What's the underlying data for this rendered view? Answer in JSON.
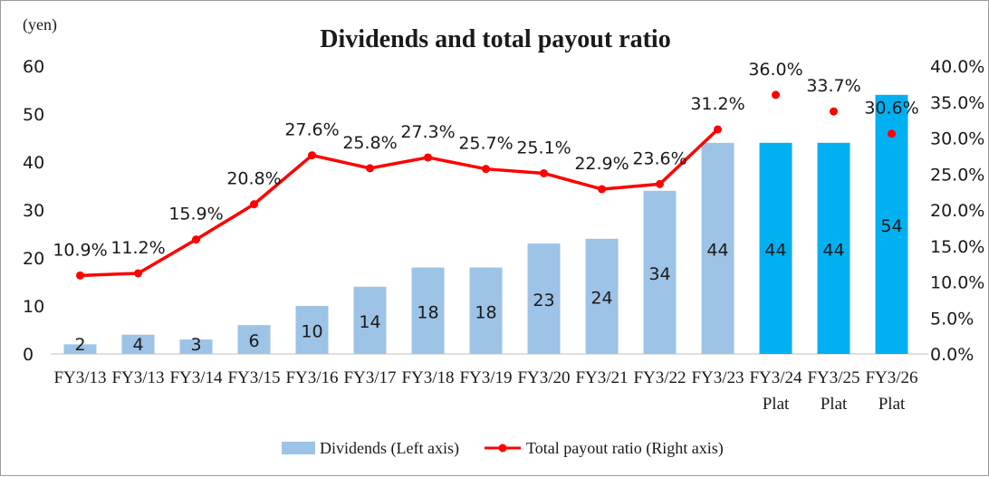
{
  "chart_data": {
    "type": "bar",
    "title": "Dividends and total payout ratio",
    "left_unit": "(yen)",
    "categories": [
      [
        "FY3/13"
      ],
      [
        "FY3/13"
      ],
      [
        "FY3/14"
      ],
      [
        "FY3/15"
      ],
      [
        "FY3/16"
      ],
      [
        "FY3/17"
      ],
      [
        "FY3/18"
      ],
      [
        "FY3/19"
      ],
      [
        "FY3/20"
      ],
      [
        "FY3/21"
      ],
      [
        "FY3/22"
      ],
      [
        "FY3/23"
      ],
      [
        "FY3/24",
        "Plat"
      ],
      [
        "FY3/25",
        "Plat"
      ],
      [
        "FY3/26",
        "Plat"
      ]
    ],
    "series": [
      {
        "name": "Dividends (Left axis)",
        "axis": "left",
        "kind": "bar",
        "values": [
          2,
          4,
          3,
          6,
          10,
          14,
          18,
          18,
          23,
          24,
          34,
          44,
          44,
          44,
          54
        ],
        "plan_from_index": 12,
        "color": "#9dc3e6",
        "plan_color": "#00b0f0"
      },
      {
        "name": "Total payout ratio (Right axis)",
        "axis": "right",
        "kind": "line",
        "values": [
          10.9,
          11.2,
          15.9,
          20.8,
          27.6,
          25.8,
          27.3,
          25.7,
          25.1,
          22.9,
          23.6,
          31.2,
          36.0,
          33.7,
          30.6
        ],
        "labels": [
          "10.9%",
          "11.2%",
          "15.9%",
          "20.8%",
          "27.6%",
          "25.8%",
          "27.3%",
          "25.7%",
          "25.1%",
          "22.9%",
          "23.6%",
          "31.2%",
          "36.0%",
          "33.7%",
          "30.6%"
        ],
        "line_until_index": 11,
        "color": "#ff0000"
      }
    ],
    "y_left": {
      "min": 0,
      "max": 60,
      "ticks": [
        "0",
        "10",
        "20",
        "30",
        "40",
        "50",
        "60"
      ]
    },
    "y_right": {
      "min": 0,
      "max": 40,
      "ticks": [
        "0.0%",
        "5.0%",
        "10.0%",
        "15.0%",
        "20.0%",
        "25.0%",
        "30.0%",
        "35.0%",
        "40.0%"
      ]
    },
    "grid": false,
    "legend_position": "bottom"
  }
}
